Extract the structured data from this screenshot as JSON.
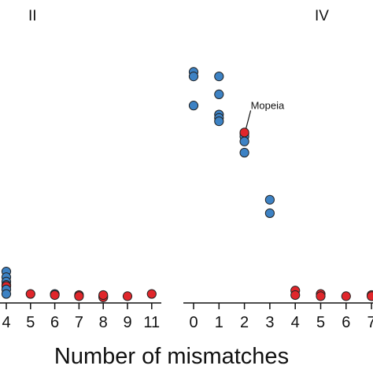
{
  "chart_data": {
    "type": "scatter",
    "xlabel": "Number of mismatches",
    "colors": {
      "blue": "#3d82c4",
      "red": "#e0262b",
      "outline": "#222222"
    },
    "panels": [
      {
        "label": "II",
        "x_ticks": [
          "4",
          "5",
          "6",
          "7",
          "8",
          "9",
          "11"
        ],
        "points": [
          {
            "x": "4",
            "y": 0.07,
            "color": "blue"
          },
          {
            "x": "4",
            "y": 0.045,
            "color": "blue"
          },
          {
            "x": "4",
            "y": 0.025,
            "color": "blue"
          },
          {
            "x": "4",
            "y": 0.01,
            "color": "blue"
          },
          {
            "x": "4",
            "y": 0.005,
            "color": "red"
          },
          {
            "x": "4",
            "y": -0.01,
            "color": "blue"
          },
          {
            "x": "4",
            "y": -0.03,
            "color": "blue"
          },
          {
            "x": "5",
            "y": -0.03,
            "color": "red"
          },
          {
            "x": "6",
            "y": -0.03,
            "color": "blue"
          },
          {
            "x": "6",
            "y": -0.035,
            "color": "red"
          },
          {
            "x": "7",
            "y": -0.035,
            "color": "red"
          },
          {
            "x": "7",
            "y": -0.04,
            "color": "red"
          },
          {
            "x": "8",
            "y": -0.04,
            "color": "red"
          },
          {
            "x": "8",
            "y": -0.045,
            "color": "red"
          },
          {
            "x": "8",
            "y": -0.035,
            "color": "red"
          },
          {
            "x": "9",
            "y": -0.04,
            "color": "red"
          },
          {
            "x": "11",
            "y": -0.03,
            "color": "red"
          }
        ]
      },
      {
        "label": "IV",
        "x_ticks": [
          "0",
          "1",
          "2",
          "3",
          "4",
          "5",
          "6",
          "7"
        ],
        "points": [
          {
            "x": "0",
            "y": 0.96,
            "color": "blue"
          },
          {
            "x": "0",
            "y": 0.94,
            "color": "blue"
          },
          {
            "x": "0",
            "y": 0.81,
            "color": "blue"
          },
          {
            "x": "1",
            "y": 0.94,
            "color": "blue"
          },
          {
            "x": "1",
            "y": 0.86,
            "color": "blue"
          },
          {
            "x": "1",
            "y": 0.77,
            "color": "blue"
          },
          {
            "x": "1",
            "y": 0.755,
            "color": "blue"
          },
          {
            "x": "1",
            "y": 0.74,
            "color": "blue"
          },
          {
            "x": "2",
            "y": 0.685,
            "color": "blue"
          },
          {
            "x": "2",
            "y": 0.672,
            "color": "blue"
          },
          {
            "x": "2",
            "y": 0.65,
            "color": "blue"
          },
          {
            "x": "2",
            "y": 0.6,
            "color": "blue"
          },
          {
            "x": "2",
            "y": 0.69,
            "color": "red"
          },
          {
            "x": "3",
            "y": 0.39,
            "color": "blue"
          },
          {
            "x": "3",
            "y": 0.33,
            "color": "blue"
          },
          {
            "x": "4",
            "y": -0.015,
            "color": "red"
          },
          {
            "x": "4",
            "y": -0.035,
            "color": "red"
          },
          {
            "x": "5",
            "y": -0.03,
            "color": "red"
          },
          {
            "x": "5",
            "y": -0.04,
            "color": "red"
          },
          {
            "x": "6",
            "y": -0.04,
            "color": "red"
          },
          {
            "x": "7",
            "y": -0.035,
            "color": "red"
          },
          {
            "x": "7",
            "y": -0.04,
            "color": "red"
          }
        ],
        "annotation": {
          "text": "Mopeia",
          "x": "2",
          "y": 0.69
        }
      }
    ]
  }
}
